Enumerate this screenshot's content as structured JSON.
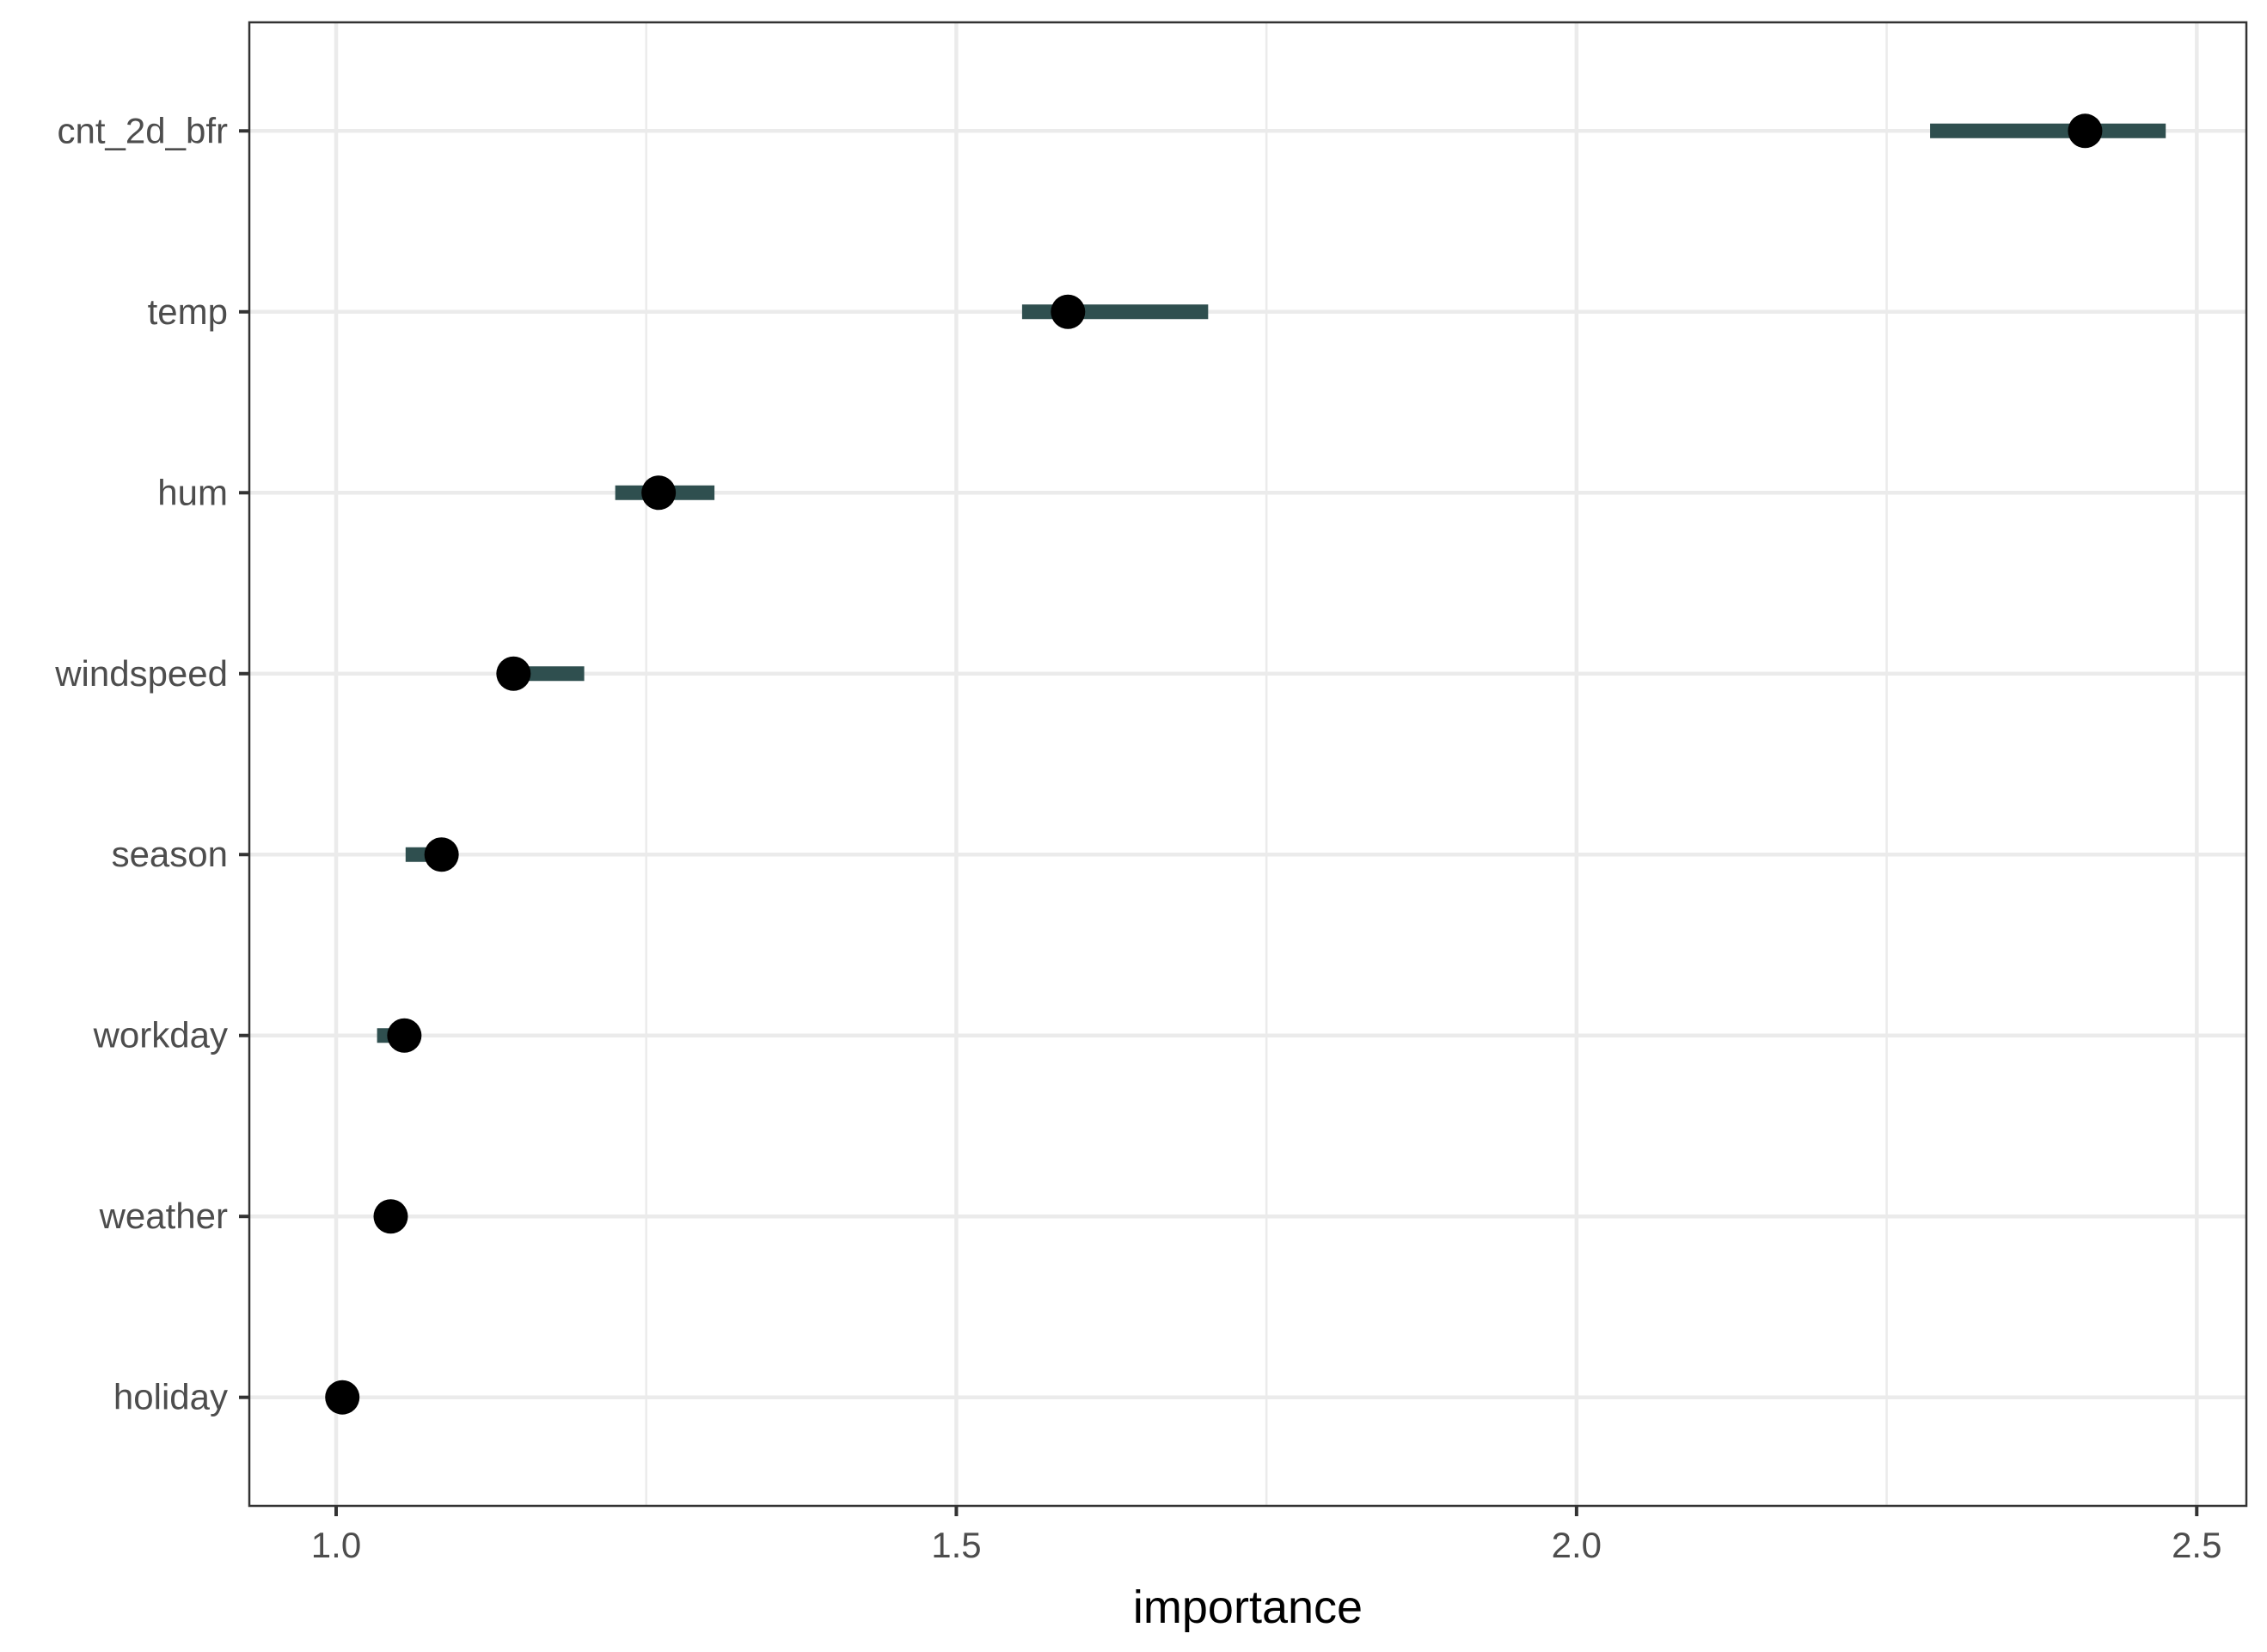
{
  "chart_data": {
    "type": "scatter",
    "title": "",
    "xlabel": "importance",
    "ylabel": "",
    "xlim": [
      0.93,
      2.54
    ],
    "x_ticks": [
      1.0,
      1.5,
      2.0,
      2.5
    ],
    "x_tick_labels": [
      "1.0",
      "1.5",
      "2.0",
      "2.5"
    ],
    "categories": [
      "cnt_2d_bfr",
      "temp",
      "hum",
      "windspeed",
      "season",
      "workday",
      "weather",
      "holiday"
    ],
    "values": [
      2.41,
      1.59,
      1.26,
      1.143,
      1.085,
      1.055,
      1.044,
      1.005
    ],
    "interval_low": [
      2.285,
      1.553,
      1.225,
      1.133,
      1.056,
      1.033,
      1.044,
      1.005
    ],
    "interval_high": [
      2.475,
      1.703,
      1.305,
      1.2,
      1.095,
      1.055,
      1.044,
      1.005
    ],
    "grid": true,
    "colors": {
      "point": "#000000",
      "interval": "#2f4f4f",
      "grid": "#ebebeb",
      "panel_border": "#333333",
      "axis_text": "#4d4d4d"
    }
  }
}
